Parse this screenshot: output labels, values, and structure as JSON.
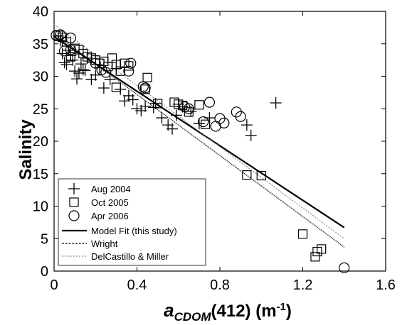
{
  "chart_data": {
    "type": "scatter",
    "title": "",
    "xlabel": {
      "prefix": "a",
      "subscript": "CDOM",
      "suffix": "(412) (m",
      "superscript": "-1",
      "close": ")"
    },
    "ylabel": "Salinity",
    "xlim": [
      0,
      1.6
    ],
    "ylim": [
      0,
      40
    ],
    "xticks": [
      "0",
      "0.4",
      "0.8",
      "1.2",
      "1.6"
    ],
    "yticks": [
      "0",
      "5",
      "10",
      "15",
      "20",
      "25",
      "30",
      "35",
      "40"
    ],
    "grid": false,
    "legend_position": "bottom-left",
    "series": [
      {
        "name": "Aug 2004",
        "marker": "plus",
        "points": [
          [
            0.02,
            36.2
          ],
          [
            0.03,
            35.5
          ],
          [
            0.04,
            33.5
          ],
          [
            0.05,
            32.1
          ],
          [
            0.06,
            31.8
          ],
          [
            0.07,
            34.0
          ],
          [
            0.08,
            33.2
          ],
          [
            0.09,
            32.5
          ],
          [
            0.1,
            30.8
          ],
          [
            0.11,
            29.6
          ],
          [
            0.12,
            30.5
          ],
          [
            0.13,
            31.9
          ],
          [
            0.14,
            31.0
          ],
          [
            0.15,
            30.9
          ],
          [
            0.16,
            32.8
          ],
          [
            0.18,
            29.5
          ],
          [
            0.2,
            30.2
          ],
          [
            0.22,
            31.3
          ],
          [
            0.24,
            28.2
          ],
          [
            0.27,
            29.5
          ],
          [
            0.3,
            31.2
          ],
          [
            0.32,
            28.0
          ],
          [
            0.34,
            26.2
          ],
          [
            0.36,
            27.0
          ],
          [
            0.38,
            26.4
          ],
          [
            0.4,
            25.0
          ],
          [
            0.42,
            24.7
          ],
          [
            0.44,
            25.4
          ],
          [
            0.48,
            25.2
          ],
          [
            0.49,
            25.8
          ],
          [
            0.52,
            23.6
          ],
          [
            0.55,
            22.5
          ],
          [
            0.57,
            21.9
          ],
          [
            0.59,
            24.0
          ],
          [
            0.6,
            25.7
          ],
          [
            0.62,
            25.3
          ],
          [
            0.66,
            24.6
          ],
          [
            0.7,
            22.7
          ],
          [
            0.75,
            23.6
          ],
          [
            0.93,
            22.5
          ],
          [
            0.95,
            20.9
          ],
          [
            1.07,
            25.9
          ]
        ]
      },
      {
        "name": "Oct 2005",
        "marker": "square",
        "points": [
          [
            0.02,
            36.3
          ],
          [
            0.04,
            36.0
          ],
          [
            0.06,
            35.3
          ],
          [
            0.08,
            33.0
          ],
          [
            0.1,
            34.3
          ],
          [
            0.12,
            34.1
          ],
          [
            0.14,
            33.5
          ],
          [
            0.16,
            33.0
          ],
          [
            0.18,
            32.8
          ],
          [
            0.2,
            32.5
          ],
          [
            0.22,
            32.0
          ],
          [
            0.24,
            32.3
          ],
          [
            0.26,
            31.5
          ],
          [
            0.28,
            32.8
          ],
          [
            0.3,
            31.8
          ],
          [
            0.32,
            30.8
          ],
          [
            0.34,
            32.0
          ],
          [
            0.36,
            31.6
          ],
          [
            0.3,
            28.3
          ],
          [
            0.44,
            28.0
          ],
          [
            0.45,
            29.8
          ],
          [
            0.5,
            25.8
          ],
          [
            0.58,
            26.0
          ],
          [
            0.6,
            25.7
          ],
          [
            0.62,
            25.5
          ],
          [
            0.65,
            24.5
          ],
          [
            0.7,
            25.6
          ],
          [
            0.73,
            22.6
          ],
          [
            0.93,
            14.8
          ],
          [
            1.0,
            14.7
          ],
          [
            1.2,
            5.7
          ],
          [
            1.26,
            2.2
          ],
          [
            1.27,
            3.0
          ],
          [
            1.29,
            3.4
          ]
        ]
      },
      {
        "name": "Apr 2006",
        "marker": "circle",
        "points": [
          [
            0.01,
            36.3
          ],
          [
            0.03,
            36.4
          ],
          [
            0.05,
            33.9
          ],
          [
            0.08,
            34.1
          ],
          [
            0.08,
            35.9
          ],
          [
            0.2,
            32.0
          ],
          [
            0.23,
            31.0
          ],
          [
            0.25,
            30.6
          ],
          [
            0.36,
            30.8
          ],
          [
            0.37,
            32.0
          ],
          [
            0.43,
            28.4
          ],
          [
            0.44,
            28.2
          ],
          [
            0.63,
            25.3
          ],
          [
            0.65,
            25.0
          ],
          [
            0.72,
            23.0
          ],
          [
            0.75,
            26.0
          ],
          [
            0.78,
            22.3
          ],
          [
            0.8,
            23.5
          ],
          [
            0.82,
            22.8
          ],
          [
            0.88,
            24.5
          ],
          [
            0.9,
            23.8
          ],
          [
            1.4,
            0.5
          ]
        ]
      },
      {
        "name": "Model Fit (this study)",
        "line": "solid-thick",
        "points": [
          [
            0.0,
            36.1
          ],
          [
            1.4,
            6.7
          ]
        ]
      },
      {
        "name": "Wright",
        "line": "dense-dotted",
        "points": [
          [
            0.0,
            36.6
          ],
          [
            1.4,
            3.7
          ]
        ]
      },
      {
        "name": "DelCastillo & Miller",
        "line": "light-dotted",
        "points": [
          [
            0.0,
            38.0
          ],
          [
            1.4,
            5.0
          ]
        ]
      }
    ]
  }
}
